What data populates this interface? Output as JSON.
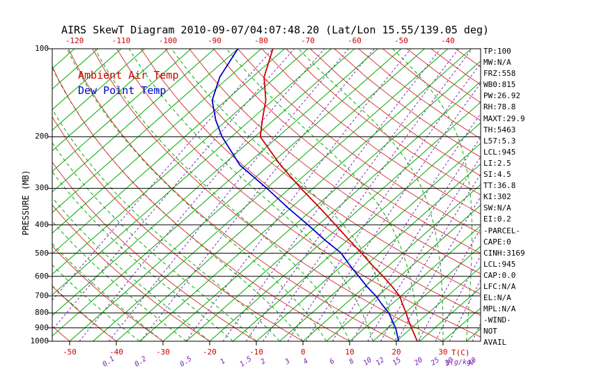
{
  "title": "AIRS SkewT Diagram 2010-09-07/04:07:48.20 (Lat/Lon 15.55/139.05 deg)",
  "legend": {
    "temp_label": "Ambient Air Temp",
    "dew_label": "Dew Point Temp"
  },
  "axes": {
    "y_label": "PRESSURE (MB)",
    "pressure_ticks": [
      100,
      200,
      300,
      400,
      500,
      600,
      700,
      800,
      900,
      1000
    ],
    "top_temp_labels": [
      -120,
      -110,
      -100,
      -90,
      -80,
      -70,
      -60,
      -50,
      -40
    ],
    "bottom_temp_labels": [
      -50,
      -40,
      -30,
      -20,
      -10,
      0,
      10,
      20,
      30
    ],
    "mixing_ratio_labels": [
      0.1,
      0.2,
      0.5,
      1,
      1.5,
      2,
      3,
      4,
      6,
      8,
      10,
      12,
      15,
      20,
      25,
      30,
      40
    ],
    "temp_unit": "T(C)",
    "mixing_unit": "g(g/kg)"
  },
  "stats": [
    "TP:100",
    "MW:N/A",
    "FRZ:558",
    "WB0:815",
    "PW:26.92",
    "RH:78.8",
    "MAXT:29.9",
    "TH:5463",
    "L57:5.3",
    "LCL:945",
    "LI:2.5",
    "SI:4.5",
    "TT:36.8",
    "KI:302",
    "SW:N/A",
    "EI:0.2",
    "-PARCEL-",
    "CAPE:0",
    "CINH:3169",
    "LCL:945",
    "CAP:0.0",
    "LFC:N/A",
    "EL:N/A",
    "MPL:N/A",
    "-WIND-",
    "NOT",
    "AVAIL"
  ],
  "colors": {
    "isotherm": "#00aa00",
    "moist_adiabat": "#00aa00",
    "dry_adiabat": "#d43c3c",
    "mixing_ratio": "#7722bb",
    "pressure_line": "#000000",
    "temp_profile": "#cc0000",
    "dew_profile": "#0000cc"
  },
  "chart_data": {
    "type": "line",
    "title": "AIRS SkewT Diagram 2010-09-07/04:07:48.20 (Lat/Lon 15.55/139.05 deg)",
    "x_axis": {
      "label": "Temperature (C), skewed 45 deg",
      "bottom_range": [
        -53,
        38
      ]
    },
    "y_axis": {
      "label": "PRESSURE (MB)",
      "scale": "log",
      "range": [
        100,
        1000
      ]
    },
    "background": {
      "isotherms_c": {
        "min": -120,
        "max": 40,
        "step": 5
      },
      "dry_adiabats_theta_c": {
        "min": -50,
        "max": 190,
        "step": 10
      },
      "moist_adiabats_start_c": {
        "min": -40,
        "max": 40,
        "step": 5
      },
      "mixing_ratio_lines_gkg": [
        0.01,
        0.02,
        0.05,
        0.1,
        0.2,
        0.5,
        1,
        1.5,
        2,
        3,
        4,
        6,
        8,
        10,
        12,
        15,
        20,
        25,
        30,
        40
      ]
    },
    "series": [
      {
        "name": "Ambient Air Temp",
        "color": "#cc0000",
        "points_p_t": [
          [
            1000,
            24.5
          ],
          [
            950,
            22.3
          ],
          [
            900,
            20.0
          ],
          [
            850,
            17.6
          ],
          [
            800,
            15.2
          ],
          [
            750,
            12.5
          ],
          [
            700,
            9.7
          ],
          [
            650,
            5.8
          ],
          [
            600,
            1.4
          ],
          [
            550,
            -3.6
          ],
          [
            500,
            -8.8
          ],
          [
            450,
            -14.8
          ],
          [
            400,
            -21.3
          ],
          [
            350,
            -28.8
          ],
          [
            300,
            -37.6
          ],
          [
            250,
            -47.6
          ],
          [
            200,
            -58.8
          ],
          [
            175,
            -62.5
          ],
          [
            150,
            -66.5
          ],
          [
            125,
            -72.5
          ],
          [
            100,
            -77.5
          ]
        ]
      },
      {
        "name": "Dew Point Temp",
        "color": "#0000cc",
        "points_p_t": [
          [
            1000,
            20.5
          ],
          [
            950,
            18.6
          ],
          [
            900,
            16.6
          ],
          [
            850,
            14.1
          ],
          [
            800,
            11.5
          ],
          [
            750,
            8.1
          ],
          [
            700,
            4.6
          ],
          [
            650,
            0.4
          ],
          [
            600,
            -3.8
          ],
          [
            550,
            -8.4
          ],
          [
            500,
            -13.2
          ],
          [
            450,
            -20.0
          ],
          [
            400,
            -27.2
          ],
          [
            350,
            -35.6
          ],
          [
            300,
            -44.9
          ],
          [
            250,
            -56.3
          ],
          [
            200,
            -67.0
          ],
          [
            175,
            -72.5
          ],
          [
            150,
            -78.0
          ],
          [
            125,
            -82.0
          ],
          [
            100,
            -85.0
          ]
        ]
      }
    ]
  }
}
